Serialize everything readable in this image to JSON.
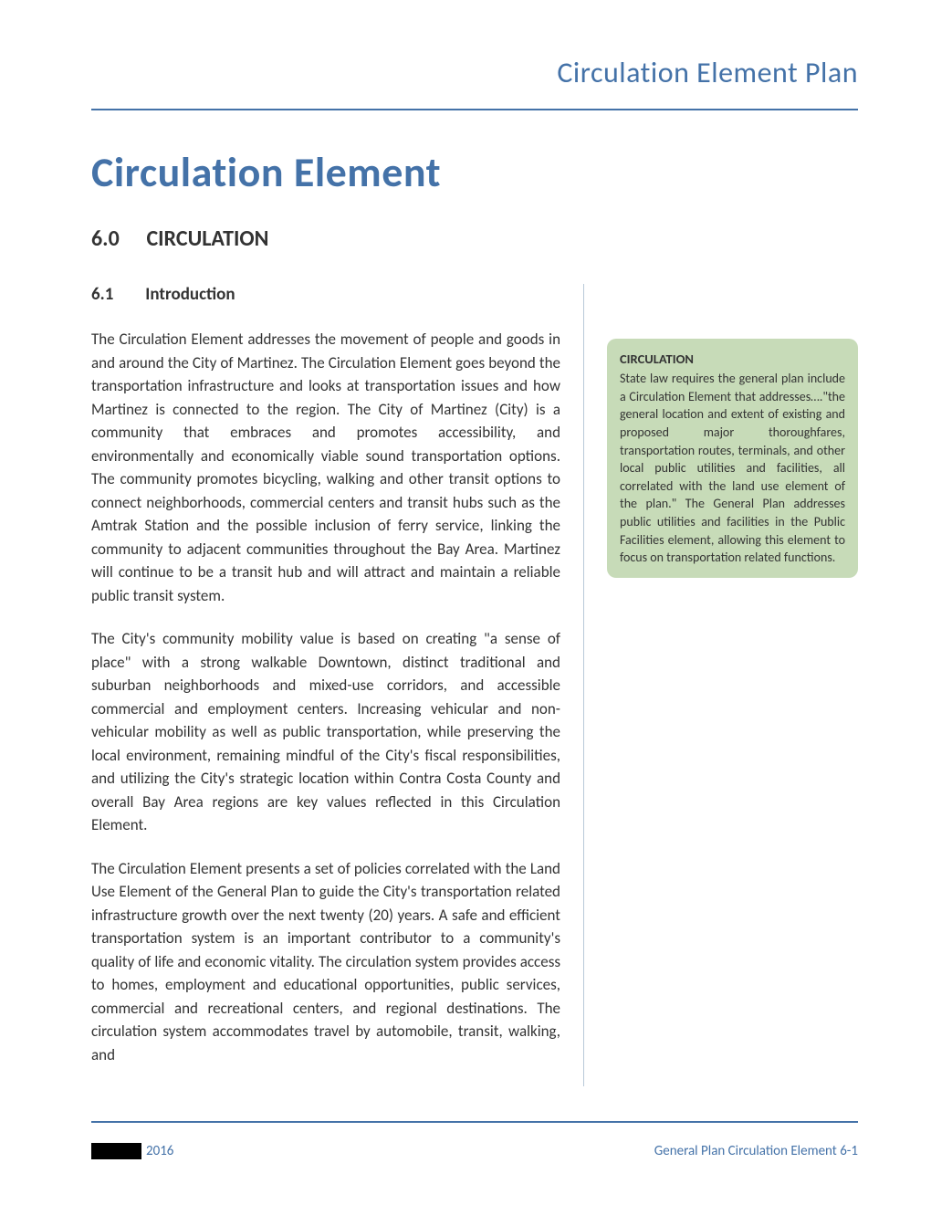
{
  "header": {
    "running_title": "Circulation Element Plan"
  },
  "document": {
    "main_title": "Circulation Element",
    "section": {
      "number": "6.0",
      "title": "CIRCULATION"
    },
    "subsection": {
      "number": "6.1",
      "title": "Introduction"
    },
    "body_paragraphs": [
      "The Circulation Element addresses the movement of people and goods in and around the City of Martinez.  The Circulation Element goes beyond the transportation infrastructure and looks at transportation issues and how Martinez is connected to the region.  The City of Martinez (City) is a community that embraces and promotes accessibility, and environmentally and economically viable sound transportation options. The community promotes bicycling, walking and other transit options to connect neighborhoods, commercial centers and transit hubs such as the Amtrak Station and the possible inclusion of ferry service, linking the community to adjacent communities throughout the Bay Area. Martinez will continue to be a transit hub and will attract and maintain a reliable public transit system.",
      "The City's community mobility value is based on creating \"a sense of place\" with a strong walkable Downtown, distinct traditional and suburban neighborhoods and mixed-use corridors, and accessible commercial and employment centers. Increasing vehicular and non-vehicular mobility as well as public transportation, while preserving the local environment, remaining mindful of the City's fiscal responsibilities, and utilizing the City's strategic location within Contra Costa County and overall Bay Area regions are key values reflected in this Circulation Element.",
      "The Circulation Element presents a set of policies correlated with the Land Use Element of the General Plan to guide the City's transportation related infrastructure growth over the next twenty (20) years. A safe and efficient transportation system is an important contributor to a community's quality of life and economic vitality. The circulation system provides access to homes, employment and educational opportunities, public services, commercial and recreational centers, and regional destinations. The circulation system accommodates travel by automobile, transit, walking, and"
    ]
  },
  "callout": {
    "title": "CIRCULATION",
    "text": "State law requires the general plan include a Circulation Element that addresses….\"the general location and extent of existing and proposed major thoroughfares, transportation routes, terminals, and other local public utilities and facilities, all correlated with the land use element of the plan.\" The General Plan addresses public utilities and facilities in the Public Facilities element, allowing this element to focus on transportation related functions."
  },
  "footer": {
    "year": "2016",
    "right_text": "General Plan Circulation Element 6-1"
  },
  "styling": {
    "accent_color": "#4472a8",
    "callout_bg": "#c7dbb8",
    "body_color": "#333333",
    "body_fontsize": 17,
    "title_fontsize": 46,
    "header_fontsize": 32,
    "rule_color": "#4472a8"
  }
}
